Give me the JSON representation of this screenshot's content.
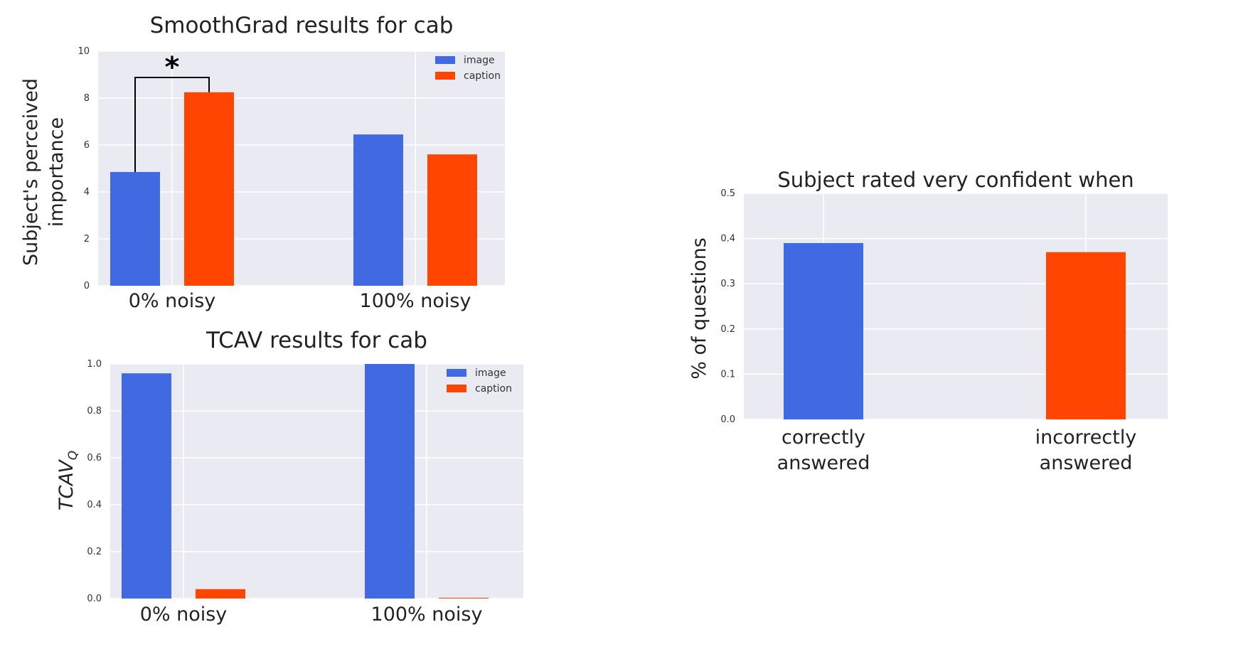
{
  "colors": {
    "image": "#4169E1",
    "caption": "#FF4500",
    "plot_bg": "#EAEAF2",
    "grid": "#FFFFFF"
  },
  "chart_data": [
    {
      "type": "bar",
      "title": "SmoothGrad results for cab",
      "ylabel": "Subject's perceived importance",
      "ylabel_lines": [
        "Subject's perceived",
        "importance"
      ],
      "categories": [
        "0% noisy",
        "100% noisy"
      ],
      "series": [
        {
          "name": "image",
          "values": [
            4.85,
            6.45
          ]
        },
        {
          "name": "caption",
          "values": [
            8.25,
            5.6
          ]
        }
      ],
      "ylim": [
        0,
        10
      ],
      "yticks": [
        "0",
        "2",
        "4",
        "6",
        "8",
        "10"
      ],
      "grid": true,
      "legend": "top-right",
      "annotation": "*"
    },
    {
      "type": "bar",
      "title": "TCAV results for cab",
      "ylabel": "TCAV_Q",
      "ylabel_main": "TCAV",
      "ylabel_sub": "Q",
      "categories": [
        "0% noisy",
        "100% noisy"
      ],
      "series": [
        {
          "name": "image",
          "values": [
            0.96,
            1.0
          ]
        },
        {
          "name": "caption",
          "values": [
            0.04,
            0.003
          ]
        }
      ],
      "ylim": [
        0,
        1.0
      ],
      "yticks": [
        "0.0",
        "0.2",
        "0.4",
        "0.6",
        "0.8",
        "1.0"
      ],
      "grid": true,
      "legend": "top-right"
    },
    {
      "type": "bar",
      "title": "Subject rated very confident when",
      "ylabel": "% of questions",
      "categories": [
        [
          "correctly",
          "answered"
        ],
        [
          "incorrectly",
          "answered"
        ]
      ],
      "values": [
        0.39,
        0.37
      ],
      "colors": [
        "#4169E1",
        "#FF4500"
      ],
      "ylim": [
        0,
        0.5
      ],
      "yticks": [
        "0.0",
        "0.1",
        "0.2",
        "0.3",
        "0.4",
        "0.5"
      ],
      "grid": true
    }
  ]
}
